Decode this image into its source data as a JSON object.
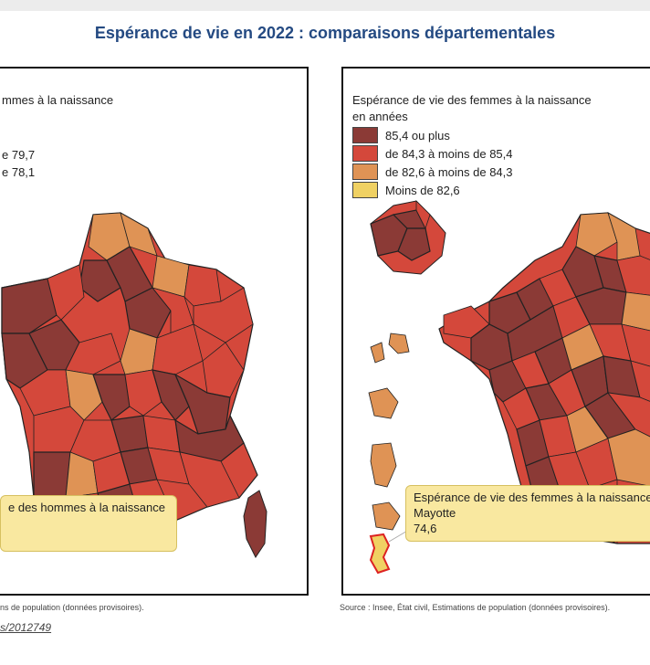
{
  "title": "Espérance de vie en 2022 : comparaisons départementales",
  "colors": {
    "c1": "#8b3a36",
    "c2": "#d4483b",
    "c3": "#df9355",
    "c4": "#f0d163",
    "title": "#244a82"
  },
  "left_map": {
    "legend_title": "mmes à la naissance",
    "legend_items": [
      "e 79,7",
      "e 78,1"
    ],
    "tooltip": "e des hommes à la naissance",
    "source": "ns de population (données provisoires).",
    "link": "s/2012749"
  },
  "right_map": {
    "legend_title_1": "Espérance de vie des femmes à la naissance",
    "legend_title_2": "en années",
    "legend_items": [
      {
        "label": "85,4 ou plus",
        "color": "#8b3a36"
      },
      {
        "label": "de 84,3 à moins de 85,4",
        "color": "#d4483b"
      },
      {
        "label": "de 82,6 à moins de 84,3",
        "color": "#df9355"
      },
      {
        "label": "Moins de 82,6",
        "color": "#f0d163"
      }
    ],
    "tooltip": {
      "line1": "Espérance de vie des femmes à la naissance",
      "line2": "Mayotte",
      "line3": "74,6"
    },
    "source": "Source : Insee, État civil, Estimations de population (données provisoires)."
  }
}
